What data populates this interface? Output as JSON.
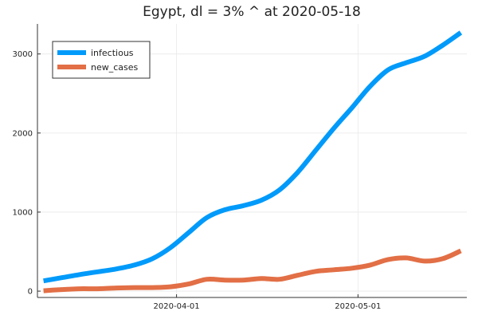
{
  "chart_data": {
    "type": "line",
    "title": "Egypt,  dl = 3% ^ at 2020-05-18",
    "xlabel": "",
    "ylabel": "",
    "xlim": [
      "2020-03-09",
      "2020-05-19"
    ],
    "ylim": [
      -80,
      3380
    ],
    "x_ticks": [
      "2020-04-01",
      "2020-05-01"
    ],
    "y_ticks": [
      0,
      1000,
      2000,
      3000
    ],
    "grid": true,
    "legend_position": "top-left",
    "x": [
      "2020-03-10",
      "2020-03-13",
      "2020-03-16",
      "2020-03-19",
      "2020-03-22",
      "2020-03-25",
      "2020-03-28",
      "2020-03-31",
      "2020-04-03",
      "2020-04-06",
      "2020-04-09",
      "2020-04-12",
      "2020-04-15",
      "2020-04-18",
      "2020-04-21",
      "2020-04-24",
      "2020-04-27",
      "2020-04-30",
      "2020-05-03",
      "2020-05-06",
      "2020-05-09",
      "2020-05-12",
      "2020-05-15",
      "2020-05-18"
    ],
    "series": [
      {
        "name": "infectious",
        "color": "#009AFA",
        "values": [
          130,
          170,
          210,
          245,
          280,
          330,
          410,
          550,
          740,
          930,
          1030,
          1080,
          1150,
          1280,
          1500,
          1780,
          2060,
          2320,
          2590,
          2800,
          2890,
          2970,
          3110,
          3270
        ]
      },
      {
        "name": "new_cases",
        "color": "#E26F46",
        "values": [
          5,
          20,
          30,
          30,
          40,
          45,
          45,
          55,
          90,
          150,
          140,
          140,
          160,
          150,
          200,
          250,
          270,
          290,
          330,
          400,
          420,
          380,
          410,
          510
        ]
      }
    ]
  }
}
